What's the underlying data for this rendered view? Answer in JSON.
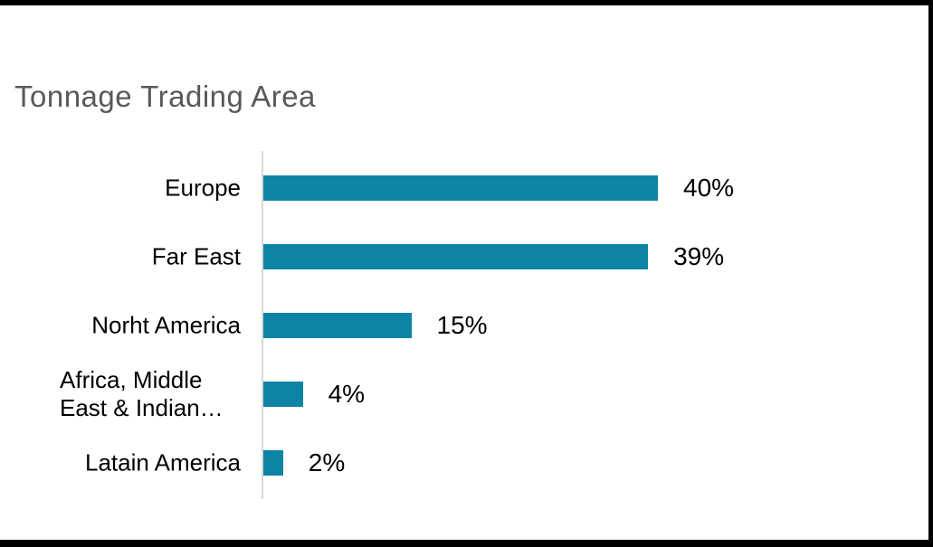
{
  "chart": {
    "title": "Tonnage Trading Area",
    "title_color": "#595959",
    "bar_color": "#0d84a5",
    "axis_line_color": "#d9d9d9",
    "label_color": "#000000",
    "frame_color": "#000000",
    "background_color": "#ffffff"
  },
  "chart_data": {
    "type": "bar",
    "orientation": "horizontal",
    "title": "Tonnage Trading Area",
    "categories": [
      "Europe",
      "Far East",
      "Norht America",
      "Africa, Middle East & Indian…",
      "Latain America"
    ],
    "display_labels": [
      "Europe",
      "Far East",
      "Norht America",
      "Africa, Middle\nEast & Indian…",
      "Latain America"
    ],
    "values": [
      40,
      39,
      15,
      4,
      2
    ],
    "value_labels": [
      "40%",
      "39%",
      "15%",
      "4%",
      "2%"
    ],
    "xlabel": "",
    "ylabel": "",
    "xlim": [
      0,
      40
    ],
    "grid": false,
    "legend": false,
    "data_labels_position": "outside-end"
  }
}
